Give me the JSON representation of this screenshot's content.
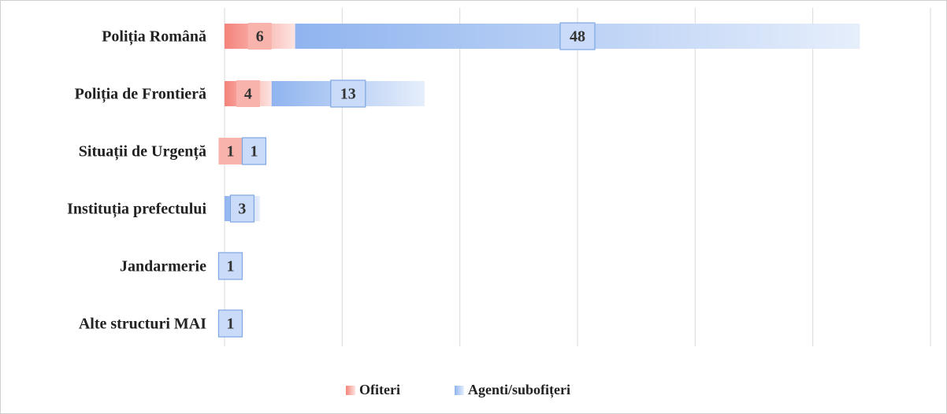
{
  "chart_data": {
    "type": "stacked-bar-horizontal",
    "categories": [
      "Poliția Română",
      "Poliția de Frontieră",
      "Situații de Urgență",
      "Instituția prefectului",
      "Jandarmerie",
      "Alte structuri MAI"
    ],
    "series": [
      {
        "name": "Ofiteri",
        "color": "#f4837a",
        "values": [
          6,
          4,
          1,
          0,
          0,
          0
        ]
      },
      {
        "name": "Agenti/subofițeri",
        "color": "#8fb4ef",
        "values": [
          48,
          13,
          1,
          3,
          1,
          1
        ]
      }
    ],
    "xlim": [
      0,
      60
    ],
    "xticks": [
      0,
      10,
      20,
      30,
      40,
      50,
      60
    ],
    "grid": true,
    "legend": "bottom"
  }
}
